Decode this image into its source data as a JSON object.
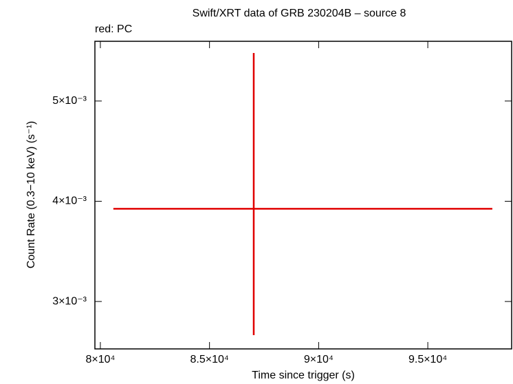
{
  "chart_data": {
    "type": "errorbar",
    "title": "Swift/XRT data of GRB 230204B – source 8",
    "subtitle": "red: PC",
    "x_label": "Time since trigger (s)",
    "y_label": "Count Rate (0.3−10 keV) (s⁻¹)",
    "xlim": [
      79750,
      98840
    ],
    "ylim": [
      0.002527,
      0.005596
    ],
    "xticks": [
      {
        "value": 80000,
        "label": "8×10⁴"
      },
      {
        "value": 85000,
        "label": "8.5×10⁴"
      },
      {
        "value": 90000,
        "label": "9×10⁴"
      },
      {
        "value": 95000,
        "label": "9.5×10⁴"
      }
    ],
    "yticks": [
      {
        "value": 0.003,
        "label": "3×10⁻³"
      },
      {
        "value": 0.004,
        "label": "4×10⁻³"
      },
      {
        "value": 0.005,
        "label": "5×10⁻³"
      }
    ],
    "series": [
      {
        "name": "PC",
        "color": "#e00000",
        "x": [
          87026
        ],
        "xerr_minus": [
          6430
        ],
        "xerr_plus": [
          10930
        ],
        "y": [
          0.003925
        ],
        "yerr_minus": [
          0.001261
        ],
        "yerr_plus": [
          0.001554
        ]
      }
    ]
  }
}
